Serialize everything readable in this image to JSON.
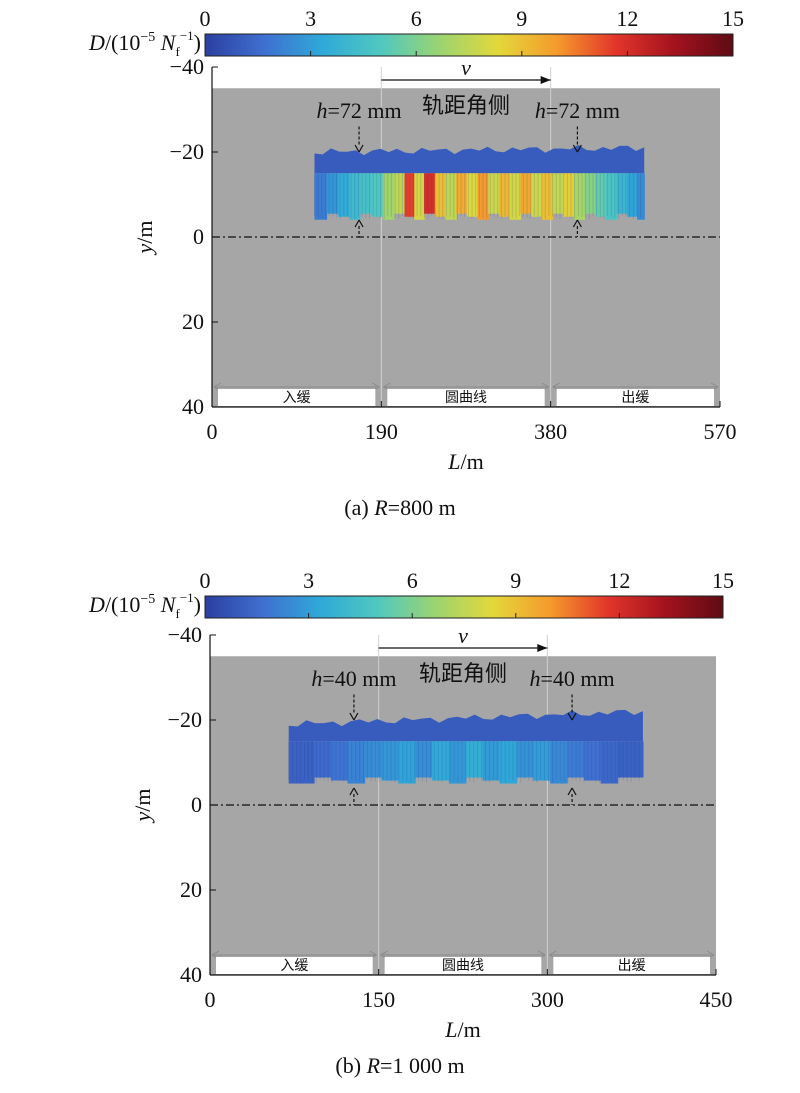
{
  "chart_data": [
    {
      "type": "heatmap",
      "caption": "(a) R=800 m",
      "caption_prefix": "(a) ",
      "caption_var": "R",
      "caption_value": "=800 m",
      "colorbar": {
        "label_var": "D",
        "label_pre": "/(10",
        "label_exp": "−5",
        "label_unit": "N",
        "label_unit_sub": "f",
        "label_unit_sup": "−1",
        "label_post": ")",
        "range": [
          0,
          15
        ],
        "ticks": [
          "0",
          "3",
          "6",
          "9",
          "12",
          "15"
        ],
        "colors": [
          "#2b3fa0",
          "#3f6fd0",
          "#2fa9d8",
          "#50c8c0",
          "#9bd470",
          "#e3d83a",
          "#f59a2c",
          "#e2352a",
          "#a3121e",
          "#5e0b14"
        ]
      },
      "xlabel_var": "L",
      "xlabel_unit": "/m",
      "ylabel_var": "y",
      "ylabel_unit": "/m",
      "xlim": [
        0,
        570
      ],
      "ylim": [
        -40,
        40
      ],
      "y_inverted": true,
      "xticks": [
        "0",
        "190",
        "380",
        "570"
      ],
      "yticks": [
        "−40",
        "−20",
        "0",
        "20",
        "40"
      ],
      "background_gray_y": [
        -35,
        40
      ],
      "centerline_y": 0,
      "segments": [
        {
          "label": "入缓",
          "from": 0,
          "to": 190
        },
        {
          "label": "圆曲线",
          "from": 190,
          "to": 380
        },
        {
          "label": "出缓",
          "from": 380,
          "to": 570
        }
      ],
      "velocity_label": "v",
      "velocity_arrow_x": [
        190,
        380
      ],
      "side_label": "轨距角侧",
      "annotations": [
        {
          "var": "h",
          "text": "=72 mm",
          "x": 165
        },
        {
          "var": "h",
          "text": "=72 mm",
          "x": 410
        }
      ],
      "damage_band": {
        "x": [
          115,
          485
        ],
        "y_upper_top": [
          -20,
          -21
        ],
        "y_band_split": -15,
        "y_lower_edge": -5,
        "columns": [
          {
            "x": 122,
            "d": 2.0
          },
          {
            "x": 135,
            "d": 2.8
          },
          {
            "x": 148,
            "d": 3.5
          },
          {
            "x": 160,
            "d": 4.2
          },
          {
            "x": 172,
            "d": 4.6
          },
          {
            "x": 185,
            "d": 5.0
          },
          {
            "x": 198,
            "d": 6.8
          },
          {
            "x": 210,
            "d": 7.5
          },
          {
            "x": 222,
            "d": 11.5
          },
          {
            "x": 232,
            "d": 8.0
          },
          {
            "x": 244,
            "d": 12.0
          },
          {
            "x": 256,
            "d": 9.0
          },
          {
            "x": 268,
            "d": 7.5
          },
          {
            "x": 280,
            "d": 9.5
          },
          {
            "x": 292,
            "d": 8.2
          },
          {
            "x": 304,
            "d": 10.0
          },
          {
            "x": 316,
            "d": 7.8
          },
          {
            "x": 328,
            "d": 9.2
          },
          {
            "x": 340,
            "d": 8.0
          },
          {
            "x": 352,
            "d": 9.6
          },
          {
            "x": 364,
            "d": 7.8
          },
          {
            "x": 376,
            "d": 9.0
          },
          {
            "x": 388,
            "d": 7.6
          },
          {
            "x": 400,
            "d": 8.6
          },
          {
            "x": 412,
            "d": 7.0
          },
          {
            "x": 424,
            "d": 6.2
          },
          {
            "x": 436,
            "d": 5.4
          },
          {
            "x": 448,
            "d": 4.8
          },
          {
            "x": 460,
            "d": 4.0
          },
          {
            "x": 472,
            "d": 3.2
          },
          {
            "x": 482,
            "d": 2.4
          }
        ]
      }
    },
    {
      "type": "heatmap",
      "caption": "(b) R=1 000 m",
      "caption_prefix": "(b) ",
      "caption_var": "R",
      "caption_value": "=1 000 m",
      "colorbar": {
        "label_var": "D",
        "label_pre": "/(10",
        "label_exp": "−5",
        "label_unit": "N",
        "label_unit_sub": "f",
        "label_unit_sup": "−1",
        "label_post": ")",
        "range": [
          0,
          15
        ],
        "ticks": [
          "0",
          "3",
          "6",
          "9",
          "12",
          "15"
        ],
        "colors": [
          "#2b3fa0",
          "#3f6fd0",
          "#2fa9d8",
          "#50c8c0",
          "#9bd470",
          "#e3d83a",
          "#f59a2c",
          "#e2352a",
          "#a3121e",
          "#5e0b14"
        ]
      },
      "xlabel_var": "L",
      "xlabel_unit": "/m",
      "ylabel_var": "y",
      "ylabel_unit": "/m",
      "xlim": [
        0,
        450
      ],
      "ylim": [
        -40,
        40
      ],
      "y_inverted": true,
      "xticks": [
        "0",
        "150",
        "300",
        "450"
      ],
      "yticks": [
        "−40",
        "−20",
        "0",
        "20",
        "40"
      ],
      "background_gray_y": [
        -35,
        40
      ],
      "centerline_y": 0,
      "segments": [
        {
          "label": "入缓",
          "from": 0,
          "to": 150
        },
        {
          "label": "圆曲线",
          "from": 150,
          "to": 300
        },
        {
          "label": "出缓",
          "from": 300,
          "to": 450
        }
      ],
      "velocity_label": "v",
      "velocity_arrow_x": [
        150,
        300
      ],
      "side_label": "轨距角侧",
      "annotations": [
        {
          "var": "h",
          "text": "=40 mm",
          "x": 128
        },
        {
          "var": "h",
          "text": "=40 mm",
          "x": 322
        }
      ],
      "damage_band": {
        "x": [
          70,
          385
        ],
        "y_upper_top": [
          -19,
          -22
        ],
        "y_band_split": -15,
        "y_lower_edge": -6,
        "columns": [
          {
            "x": 85,
            "d": 1.2
          },
          {
            "x": 100,
            "d": 1.5
          },
          {
            "x": 115,
            "d": 1.8
          },
          {
            "x": 130,
            "d": 2.2
          },
          {
            "x": 145,
            "d": 2.5
          },
          {
            "x": 160,
            "d": 2.8
          },
          {
            "x": 175,
            "d": 3.2
          },
          {
            "x": 190,
            "d": 2.6
          },
          {
            "x": 205,
            "d": 3.4
          },
          {
            "x": 220,
            "d": 2.8
          },
          {
            "x": 235,
            "d": 3.6
          },
          {
            "x": 250,
            "d": 2.9
          },
          {
            "x": 265,
            "d": 3.3
          },
          {
            "x": 280,
            "d": 2.7
          },
          {
            "x": 295,
            "d": 3.0
          },
          {
            "x": 310,
            "d": 2.4
          },
          {
            "x": 325,
            "d": 2.0
          },
          {
            "x": 340,
            "d": 1.7
          },
          {
            "x": 355,
            "d": 1.4
          },
          {
            "x": 370,
            "d": 1.2
          }
        ]
      }
    }
  ]
}
